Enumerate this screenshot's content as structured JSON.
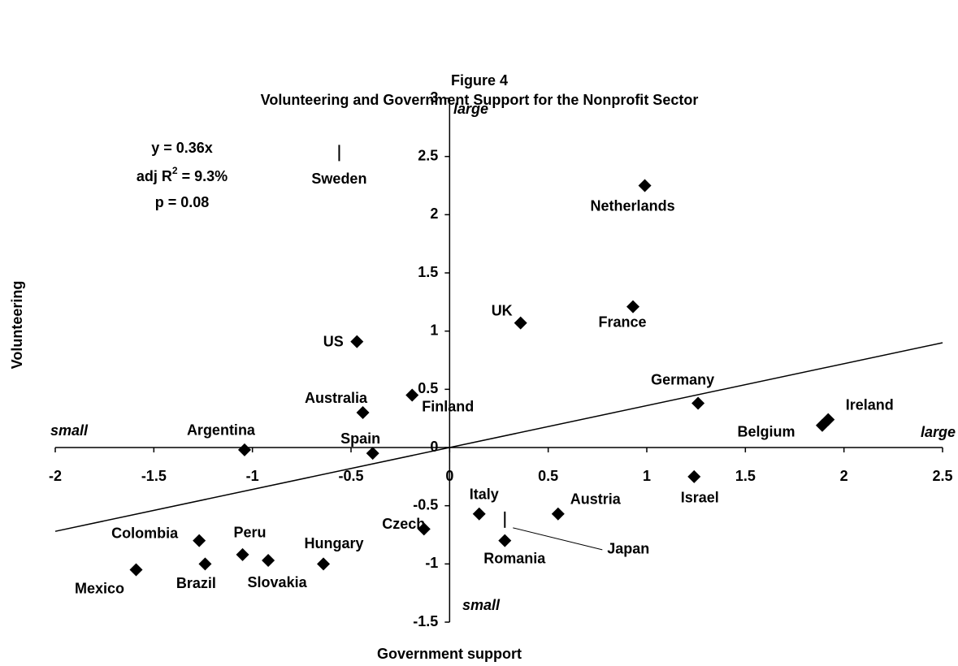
{
  "chart_data": {
    "type": "scatter",
    "title": "Figure 4",
    "subtitle": "Volunteering and Government Support for the Nonprofit Sector",
    "x_label": "Government support",
    "y_label": "Volunteering",
    "quadrant_labels": {
      "y_top": "large",
      "x_left": "small",
      "x_right": "large",
      "y_bottom": "small"
    },
    "regression": {
      "equation": "y = 0.36x",
      "r2_prefix": "adj R",
      "r2_sup": "2",
      "r2_suffix": " = 9.3%",
      "p": "p = 0.08"
    },
    "trendline": {
      "slope": 0.36,
      "intercept": 0
    },
    "color": "#000000",
    "names": [
      "Netherlands",
      "France",
      "UK",
      "US",
      "Finland",
      "Australia",
      "Germany",
      "Ireland",
      "Belgium",
      "Argentina",
      "Spain",
      "Israel",
      "Italy",
      "Austria",
      "Czech",
      "Romania",
      "Colombia",
      "Peru",
      "Slovakia",
      "Hungary",
      "Brazil",
      "Mexico",
      "Sweden",
      "Japan"
    ],
    "x": [
      0.99,
      0.93,
      0.36,
      -0.47,
      -0.19,
      -0.44,
      1.26,
      1.92,
      1.89,
      -1.04,
      -0.39,
      1.24,
      0.15,
      0.55,
      -0.13,
      0.28,
      -1.27,
      -1.05,
      -0.92,
      -0.64,
      -1.24,
      -1.59,
      -0.56,
      0.28
    ],
    "values": [
      2.25,
      1.21,
      1.07,
      0.91,
      0.45,
      0.3,
      0.38,
      0.24,
      0.19,
      -0.02,
      -0.05,
      -0.25,
      -0.57,
      -0.57,
      -0.7,
      -0.8,
      -0.8,
      -0.92,
      -0.97,
      -1.0,
      -1.0,
      -1.05,
      2.53,
      -0.62
    ],
    "markers": [
      "diamond",
      "diamond",
      "diamond",
      "diamond",
      "diamond",
      "diamond",
      "diamond",
      "diamond",
      "diamond",
      "diamond",
      "diamond",
      "diamond",
      "diamond",
      "diamond",
      "diamond",
      "diamond",
      "diamond",
      "diamond",
      "diamond",
      "diamond",
      "diamond",
      "diamond",
      "line",
      "line"
    ],
    "xlim": [
      -2,
      2.5
    ],
    "xticks": [
      -2,
      -1.5,
      -1,
      -0.5,
      0,
      0.5,
      1,
      1.5,
      2,
      2.5
    ],
    "ylim": [
      -1.5,
      3
    ],
    "yticks": [
      -1.5,
      -1,
      -0.5,
      0,
      0.5,
      1,
      1.5,
      2,
      2.5,
      3
    ]
  }
}
